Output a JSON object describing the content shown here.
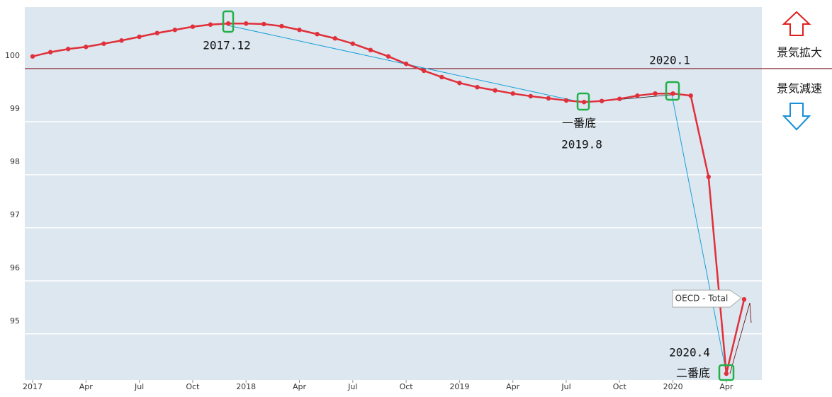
{
  "chart_data": {
    "type": "line",
    "categories": [
      "2017",
      null,
      null,
      "Apr",
      null,
      null,
      "Jul",
      null,
      null,
      "Oct",
      null,
      null,
      "2018",
      null,
      null,
      "Apr",
      null,
      null,
      "Jul",
      null,
      null,
      "Oct",
      null,
      null,
      "2019",
      null,
      null,
      "Apr",
      null,
      null,
      "Jul",
      null,
      null,
      "Oct",
      null,
      null,
      "2020",
      null,
      null,
      "Apr",
      null
    ],
    "series": [
      {
        "name": "OECD - Total",
        "color": "#e0303a",
        "values": [
          100.23,
          100.31,
          100.37,
          100.41,
          100.47,
          100.53,
          100.6,
          100.67,
          100.73,
          100.79,
          100.83,
          100.85,
          100.85,
          100.84,
          100.8,
          100.73,
          100.65,
          100.57,
          100.47,
          100.35,
          100.23,
          100.09,
          99.96,
          99.84,
          99.73,
          99.65,
          99.59,
          99.53,
          99.48,
          99.44,
          99.4,
          99.37,
          99.39,
          99.43,
          99.49,
          99.53,
          99.53,
          99.49,
          97.96,
          94.25,
          95.65
        ]
      }
    ],
    "ylim": [
      94.13,
      101.16
    ],
    "yticks": [
      95,
      96,
      97,
      98,
      99,
      100
    ],
    "grid": true,
    "reference_line": 100,
    "annotations": [
      "2017.12",
      "2020.1",
      "一番底",
      "2019.8",
      "2020.4",
      "二番底",
      "景気拡大",
      "景気減速"
    ]
  }
}
